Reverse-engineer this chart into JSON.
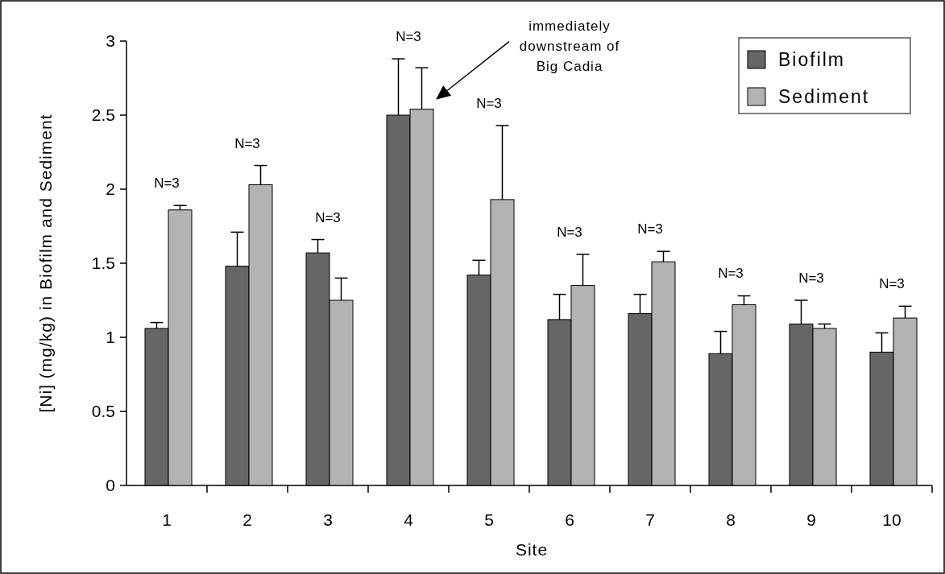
{
  "chart_data": {
    "type": "bar",
    "xlabel": "Site",
    "ylabel": "[Ni] (mg/kg) in Biofilm and Sediment",
    "categories": [
      "1",
      "2",
      "3",
      "4",
      "5",
      "6",
      "7",
      "8",
      "9",
      "10"
    ],
    "series": [
      {
        "name": "Biofilm",
        "color": "#666666",
        "values": [
          1.06,
          1.48,
          1.57,
          2.5,
          1.42,
          1.12,
          1.16,
          0.89,
          1.09,
          0.9
        ],
        "errors": [
          [
            1.06,
            1.1
          ],
          [
            1.48,
            1.71
          ],
          [
            1.57,
            1.66
          ],
          [
            2.5,
            2.88
          ],
          [
            1.42,
            1.52
          ],
          [
            1.12,
            1.29
          ],
          [
            1.16,
            1.29
          ],
          [
            0.89,
            1.04
          ],
          [
            1.09,
            1.25
          ],
          [
            0.9,
            1.03
          ]
        ]
      },
      {
        "name": "Sediment",
        "color": "#b3b3b3",
        "values": [
          1.86,
          2.03,
          1.25,
          2.54,
          1.93,
          1.35,
          1.51,
          1.22,
          1.06,
          1.13
        ],
        "errors": [
          [
            1.86,
            1.89
          ],
          [
            2.03,
            2.16
          ],
          [
            1.25,
            1.4
          ],
          [
            2.54,
            2.82
          ],
          [
            1.93,
            2.43
          ],
          [
            1.35,
            1.56
          ],
          [
            1.51,
            1.58
          ],
          [
            1.22,
            1.28
          ],
          [
            1.06,
            1.09
          ],
          [
            1.13,
            1.21
          ]
        ]
      }
    ],
    "ylim": [
      0,
      3
    ],
    "yticks": [
      0,
      0.5,
      1,
      1.5,
      2,
      2.5,
      3
    ],
    "grid": false,
    "legend": "top right",
    "annotations": [
      "N=3",
      "N=3",
      "N=3",
      "N=3",
      "N=3",
      "N=3",
      "N=3",
      "N=3",
      "N=3",
      "N=3",
      "immediately\ndownstream of\nBig Cadia"
    ]
  }
}
